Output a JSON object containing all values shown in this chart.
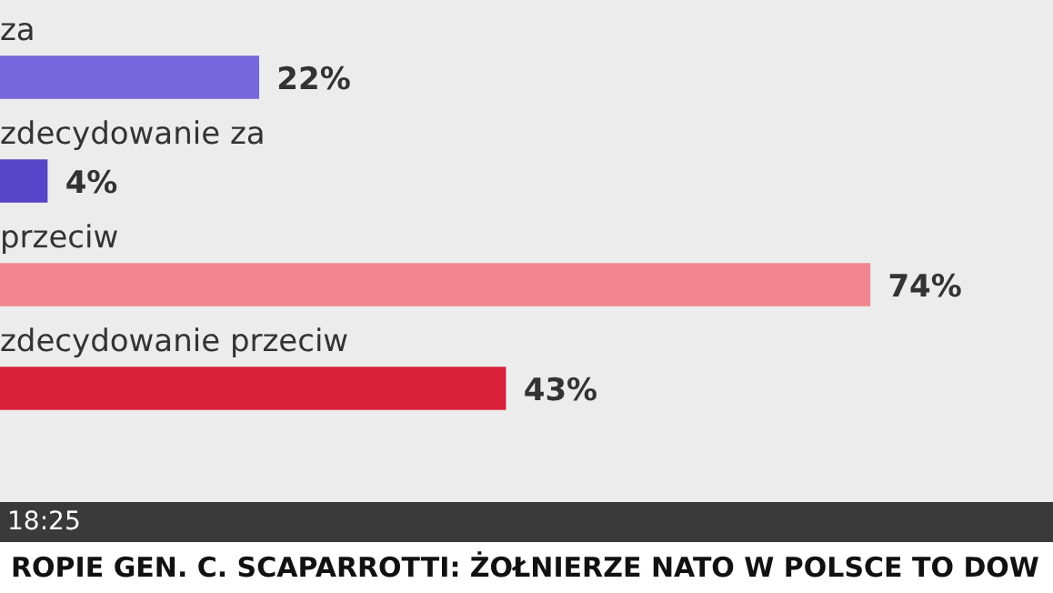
{
  "chart_data": {
    "type": "bar",
    "orientation": "horizontal",
    "categories": [
      "za",
      "zdecydowanie za",
      "przeciw",
      "zdecydowanie przeciw"
    ],
    "values": [
      22,
      4,
      74,
      43
    ],
    "colors": [
      "#7767dc",
      "#5744c6",
      "#f2858f",
      "#d9213c"
    ],
    "value_labels": [
      "22%",
      "4%",
      "74%",
      "43%"
    ],
    "legend": false,
    "annotations": [
      "18:25",
      "ROPIE GEN. C. SCAPARROTTI: ŻOŁNIERZE NATO W POLSCE TO DOW"
    ]
  }
}
